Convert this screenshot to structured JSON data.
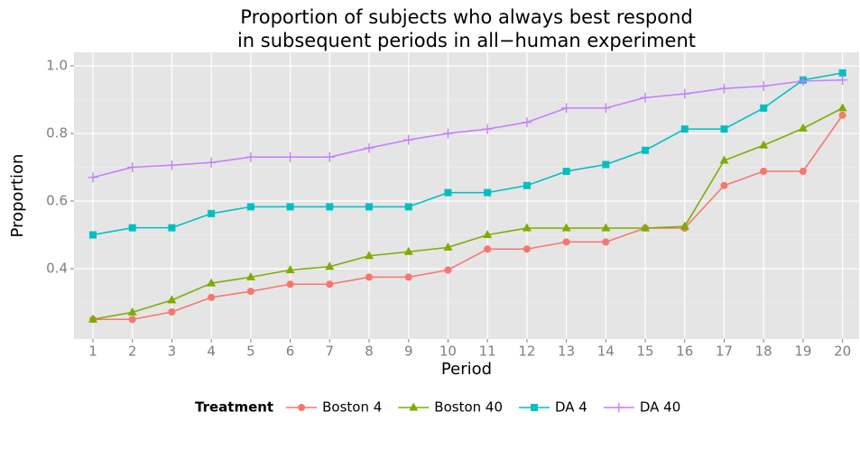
{
  "chart_data": {
    "type": "line",
    "title": [
      "Proportion of subjects who always best respond",
      "in subsequent periods in all−human experiment"
    ],
    "x_label": "Period",
    "y_label": "Proportion",
    "x": [
      1,
      2,
      3,
      4,
      5,
      6,
      7,
      8,
      9,
      10,
      11,
      12,
      13,
      14,
      15,
      16,
      17,
      18,
      19,
      20
    ],
    "xlim": [
      0.52,
      20.42
    ],
    "xticks": [
      1,
      2,
      3,
      4,
      5,
      6,
      7,
      8,
      9,
      10,
      11,
      12,
      13,
      14,
      15,
      16,
      17,
      18,
      19,
      20
    ],
    "ylim": [
      0.192,
      1.04
    ],
    "yticks": [
      0.4,
      0.6,
      0.8,
      {
        "value": 1,
        "label": "1.0"
      }
    ],
    "grid": true,
    "legend_title": "Treatment",
    "legend_position": "bottom",
    "series": [
      {
        "name": "Boston 4",
        "color": "#F8766D",
        "shape": "circle",
        "values": [
          0.25,
          0.25,
          0.272,
          0.315,
          0.333,
          0.354,
          0.354,
          0.375,
          0.375,
          0.396,
          0.458,
          0.458,
          0.479,
          0.479,
          0.52,
          0.52,
          0.646,
          0.688,
          0.688,
          0.854
        ]
      },
      {
        "name": "Boston 40",
        "color": "#7CAE00",
        "shape": "triangle",
        "values": [
          0.25,
          0.271,
          0.307,
          0.357,
          0.375,
          0.396,
          0.406,
          0.438,
          0.45,
          0.463,
          0.5,
          0.52,
          0.52,
          0.52,
          0.52,
          0.525,
          0.72,
          0.765,
          0.815,
          0.875
        ]
      },
      {
        "name": "DA 4",
        "color": "#00BFC4",
        "shape": "square",
        "values": [
          0.5,
          0.521,
          0.521,
          0.563,
          0.583,
          0.583,
          0.583,
          0.583,
          0.583,
          0.625,
          0.625,
          0.646,
          0.688,
          0.708,
          0.75,
          0.813,
          0.813,
          0.875,
          0.958,
          0.979
        ]
      },
      {
        "name": "DA 40",
        "color": "#C77CFF",
        "shape": "plus",
        "values": [
          0.67,
          0.7,
          0.706,
          0.714,
          0.73,
          0.73,
          0.73,
          0.757,
          0.781,
          0.8,
          0.813,
          0.833,
          0.875,
          0.875,
          0.906,
          0.917,
          0.933,
          0.94,
          0.955,
          0.958
        ]
      }
    ]
  }
}
